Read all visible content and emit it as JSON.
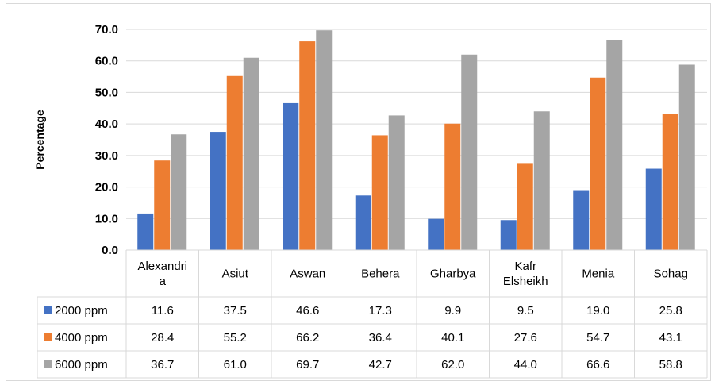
{
  "chart_data": {
    "type": "bar",
    "title": "",
    "xlabel": "",
    "ylabel": "Percentage",
    "ylim": [
      0,
      70
    ],
    "yticks": [
      "0.0",
      "10.0",
      "20.0",
      "30.0",
      "40.0",
      "50.0",
      "60.0",
      "70.0"
    ],
    "grid": true,
    "legend": "data-table",
    "categories": [
      [
        "Alexandri",
        "a"
      ],
      [
        "Asiut"
      ],
      [
        "Aswan"
      ],
      [
        "Behera"
      ],
      [
        "Gharbya"
      ],
      [
        "Kafr",
        "Elsheikh"
      ],
      [
        "Menia"
      ],
      [
        "Sohag"
      ]
    ],
    "series": [
      {
        "name": "2000 ppm",
        "color": "#4472c4",
        "values": [
          11.6,
          37.5,
          46.6,
          17.3,
          9.9,
          9.5,
          19.0,
          25.8
        ],
        "labels": [
          "11.6",
          "37.5",
          "46.6",
          "17.3",
          "9.9",
          "9.5",
          "19.0",
          "25.8"
        ]
      },
      {
        "name": "4000 ppm",
        "color": "#ed7d31",
        "values": [
          28.4,
          55.2,
          66.2,
          36.4,
          40.1,
          27.6,
          54.7,
          43.1
        ],
        "labels": [
          "28.4",
          "55.2",
          "66.2",
          "36.4",
          "40.1",
          "27.6",
          "54.7",
          "43.1"
        ]
      },
      {
        "name": "6000 ppm",
        "color": "#a5a5a5",
        "values": [
          36.7,
          61.0,
          69.7,
          42.7,
          62.0,
          44.0,
          66.6,
          58.8
        ],
        "labels": [
          "36.7",
          "61.0",
          "69.7",
          "42.7",
          "62.0",
          "44.0",
          "66.6",
          "58.8"
        ]
      }
    ]
  }
}
